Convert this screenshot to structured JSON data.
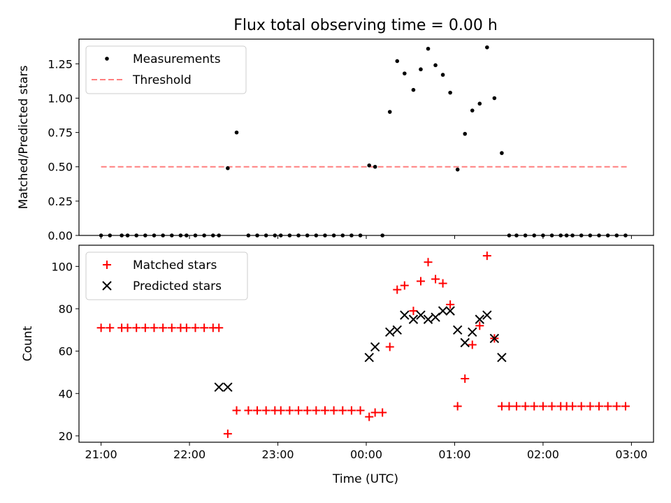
{
  "figure": {
    "title": "Flux total observing time = 0.00 h",
    "xlabel": "Time (UTC)",
    "xticks": [
      "21:00",
      "22:00",
      "23:00",
      "00:00",
      "01:00",
      "02:00",
      "03:00"
    ]
  },
  "chart_data": [
    {
      "type": "scatter",
      "ylabel": "Matched/Predicted stars",
      "xlabel": "Time (UTC)",
      "x_range": [
        "20:45",
        "03:15"
      ],
      "ylim": [
        0,
        1.43
      ],
      "yticks": [
        "0.00",
        "0.25",
        "0.50",
        "0.75",
        "1.00",
        "1.25"
      ],
      "legend": {
        "position": "upper-left",
        "entries": [
          "Measurements",
          "Threshold"
        ]
      },
      "threshold": {
        "name": "Threshold",
        "value": 0.5,
        "x_start": "21:00",
        "x_end": "02:57",
        "color": "#ff7f7f",
        "style": "dashed"
      },
      "series": [
        {
          "name": "Measurements",
          "color": "#000000",
          "marker": "dot",
          "x": [
            "21:00",
            "21:06",
            "21:14",
            "21:18",
            "21:24",
            "21:30",
            "21:36",
            "21:42",
            "21:48",
            "21:54",
            "21:58",
            "22:04",
            "22:10",
            "22:16",
            "22:20",
            "22:26",
            "22:32",
            "22:40",
            "22:46",
            "22:52",
            "22:58",
            "23:02",
            "23:08",
            "23:14",
            "23:20",
            "23:26",
            "23:32",
            "23:38",
            "23:44",
            "23:50",
            "23:56",
            "00:02",
            "00:06",
            "00:11",
            "00:16",
            "00:21",
            "00:26",
            "00:32",
            "00:37",
            "00:42",
            "00:47",
            "00:52",
            "00:57",
            "01:02",
            "01:07",
            "01:12",
            "01:17",
            "01:22",
            "01:27",
            "01:32",
            "01:37",
            "01:42",
            "01:48",
            "01:54",
            "02:00",
            "02:06",
            "02:12",
            "02:16",
            "02:20",
            "02:26",
            "02:32",
            "02:38",
            "02:44",
            "02:50",
            "02:56"
          ],
          "y": [
            0,
            0,
            0,
            0,
            0,
            0,
            0,
            0,
            0,
            0,
            0,
            0,
            0,
            0,
            0,
            0.49,
            0.75,
            0,
            0,
            0,
            0,
            0,
            0,
            0,
            0,
            0,
            0,
            0,
            0,
            0,
            0,
            0.51,
            0.5,
            0,
            0.9,
            1.27,
            1.18,
            1.06,
            1.21,
            1.36,
            1.24,
            1.17,
            1.04,
            0.48,
            0.74,
            0.91,
            0.96,
            1.37,
            1.0,
            0.6,
            0,
            0,
            0,
            0,
            0,
            0,
            0,
            0,
            0,
            0,
            0,
            0,
            0,
            0,
            0
          ]
        }
      ]
    },
    {
      "type": "scatter",
      "ylabel": "Count",
      "xlabel": "Time (UTC)",
      "x_range": [
        "20:45",
        "03:15"
      ],
      "ylim": [
        17,
        110
      ],
      "yticks": [
        "20",
        "40",
        "60",
        "80",
        "100"
      ],
      "legend": {
        "position": "upper-left",
        "entries": [
          "Matched stars",
          "Predicted stars"
        ]
      },
      "series": [
        {
          "name": "Matched stars",
          "color": "#ff0000",
          "marker": "plus",
          "x": [
            "21:00",
            "21:06",
            "21:14",
            "21:18",
            "21:24",
            "21:30",
            "21:36",
            "21:42",
            "21:48",
            "21:54",
            "21:58",
            "22:04",
            "22:10",
            "22:16",
            "22:20",
            "22:26",
            "22:32",
            "22:40",
            "22:46",
            "22:52",
            "22:58",
            "23:02",
            "23:08",
            "23:14",
            "23:20",
            "23:26",
            "23:32",
            "23:38",
            "23:44",
            "23:50",
            "23:56",
            "00:02",
            "00:06",
            "00:11",
            "00:16",
            "00:21",
            "00:26",
            "00:32",
            "00:37",
            "00:42",
            "00:47",
            "00:52",
            "00:57",
            "01:02",
            "01:07",
            "01:12",
            "01:17",
            "01:22",
            "01:27",
            "01:32",
            "01:37",
            "01:42",
            "01:48",
            "01:54",
            "02:00",
            "02:06",
            "02:12",
            "02:16",
            "02:20",
            "02:26",
            "02:32",
            "02:38",
            "02:44",
            "02:50",
            "02:56"
          ],
          "y": [
            71,
            71,
            71,
            71,
            71,
            71,
            71,
            71,
            71,
            71,
            71,
            71,
            71,
            71,
            71,
            21,
            32,
            32,
            32,
            32,
            32,
            32,
            32,
            32,
            32,
            32,
            32,
            32,
            32,
            32,
            32,
            29,
            31,
            31,
            62,
            89,
            91,
            79,
            93,
            102,
            94,
            92,
            82,
            34,
            47,
            63,
            72,
            105,
            66,
            34,
            34,
            34,
            34,
            34,
            34,
            34,
            34,
            34,
            34,
            34,
            34,
            34,
            34,
            34,
            34
          ]
        },
        {
          "name": "Predicted stars",
          "color": "#000000",
          "marker": "x",
          "x": [
            "22:20",
            "22:26",
            "00:02",
            "00:06",
            "00:16",
            "00:21",
            "00:26",
            "00:32",
            "00:37",
            "00:42",
            "00:47",
            "00:52",
            "00:57",
            "01:02",
            "01:07",
            "01:12",
            "01:17",
            "01:22",
            "01:27",
            "01:32"
          ],
          "y": [
            43,
            43,
            57,
            62,
            69,
            70,
            77,
            75,
            77,
            75,
            76,
            79,
            79,
            70,
            64,
            69,
            75,
            77,
            66,
            57
          ]
        }
      ]
    }
  ]
}
